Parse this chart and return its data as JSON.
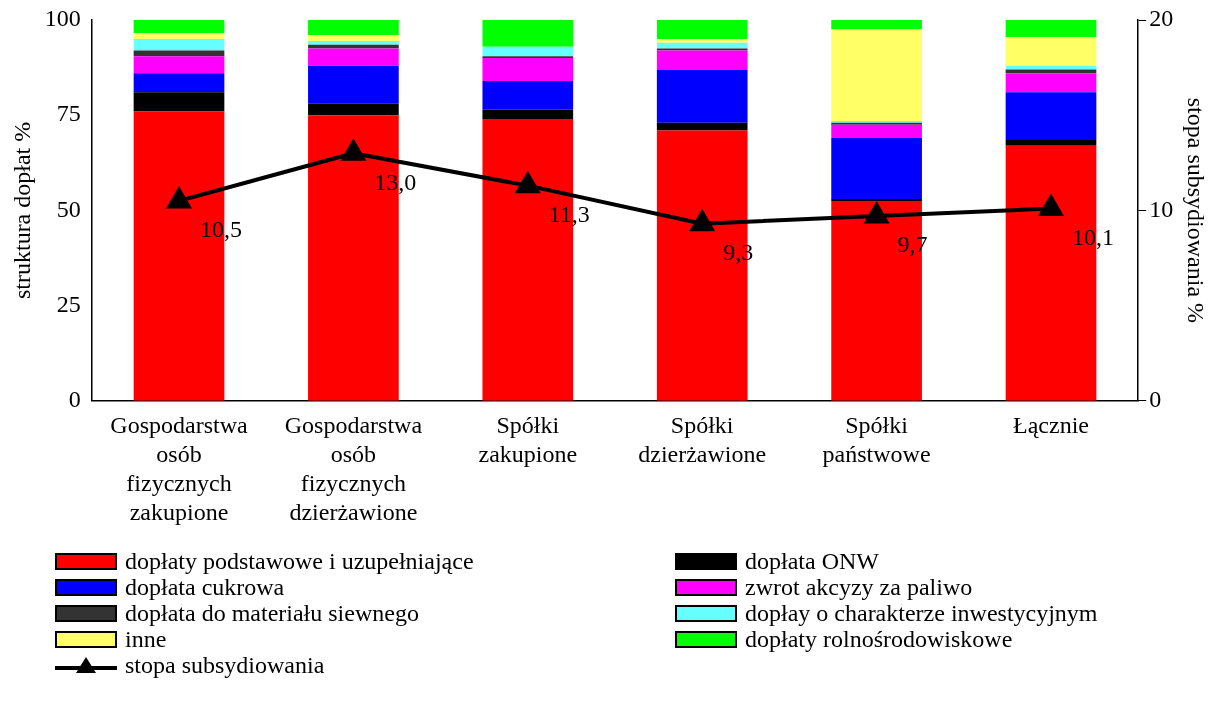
{
  "chart_data": {
    "type": "bar",
    "stacked": true,
    "legend": "bottom",
    "grid": false,
    "ylabel": "struktura dopłat %",
    "y2label": "stopa subsydiowania %",
    "categories": [
      "Gospodarstwa osób fizycznych zakupione",
      "Gospodarstwa osób fizycznych dzierżawione",
      "Spółki zakupione",
      "Spółki dzierżawione",
      "Spółki państwowe",
      "Łącznie"
    ],
    "ylim": [
      0,
      100
    ],
    "yticks": [
      0,
      25,
      50,
      75,
      100
    ],
    "y2lim": [
      0,
      20
    ],
    "y2ticks": [
      0,
      10,
      20
    ],
    "series": [
      {
        "name": "dopłaty podstawowe i uzupełniające",
        "color": "#ff0000",
        "values": [
          76,
          75,
          74,
          71,
          52.5,
          67
        ]
      },
      {
        "name": "dopłata ONW",
        "color": "#000000",
        "values": [
          5,
          3,
          2.5,
          2,
          0.5,
          1.5
        ]
      },
      {
        "name": "dopłata cukrowa",
        "color": "#0000ff",
        "values": [
          5,
          10,
          7.5,
          14,
          16,
          12.5
        ]
      },
      {
        "name": "zwrot akcyzy za paliwo",
        "color": "#ff00ff",
        "values": [
          4.5,
          4.5,
          6,
          5,
          3.5,
          5
        ]
      },
      {
        "name": "dopłata do materiału siewnego",
        "color": "#333333",
        "values": [
          1.5,
          1,
          0.5,
          0.5,
          0.5,
          1
        ]
      },
      {
        "name": "dopłay o charakterze inwestycyjnym",
        "color": "#66ffff",
        "values": [
          3,
          1,
          2.5,
          1.5,
          0.5,
          1
        ]
      },
      {
        "name": "inne",
        "color": "#ffff66",
        "values": [
          1.5,
          1.5,
          0,
          1,
          24,
          7.5
        ]
      },
      {
        "name": "dopłaty rolnośrodowiskowe",
        "color": "#00ff00",
        "values": [
          3.5,
          4,
          7,
          5,
          2.5,
          4.5
        ]
      },
      {
        "name": "stopa subsydiowania",
        "type": "line",
        "axis": "y2",
        "marker": "triangle",
        "line_style": "solid",
        "color": "#000000",
        "values": [
          10.5,
          13.0,
          11.3,
          9.3,
          9.7,
          10.1
        ],
        "value_labels": [
          "10,5",
          "13,0",
          "11,3",
          "9,3",
          "9,7",
          "10,1"
        ]
      }
    ]
  }
}
